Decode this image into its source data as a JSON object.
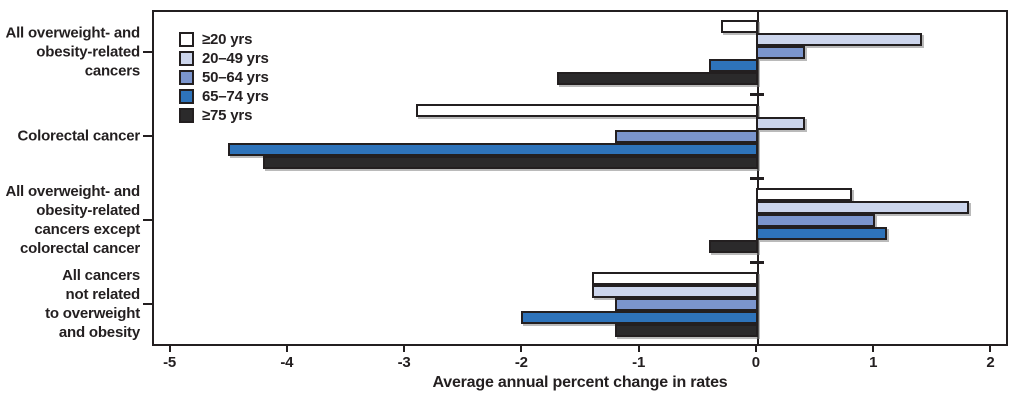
{
  "figure": {
    "background": "#ffffff",
    "text_color": "#231f20",
    "border_color": "#231f20",
    "bar_shadow_color": "#828282"
  },
  "chart_data": {
    "type": "bar",
    "orientation": "horizontal",
    "title": "",
    "xlabel": "Average annual percent change in rates",
    "ylabel": "",
    "xlim": [
      -5.15,
      2.15
    ],
    "x_ticks": [
      -5,
      -4,
      -3,
      -2,
      -1,
      0,
      1,
      2
    ],
    "grid": false,
    "legend_position": "top-left-inside",
    "categories": [
      "All overweight- and\nobesity-related\ncancers",
      "Colorectal cancer",
      "All overweight- and\nobesity-related\ncancers except\ncolorectal cancer",
      "All cancers\nnot related\nto overweight\nand obesity"
    ],
    "series": [
      {
        "name": "≥20 yrs",
        "color": "#ffffff",
        "values": [
          -0.3,
          -2.9,
          0.8,
          -1.4
        ]
      },
      {
        "name": "20–49 yrs",
        "color": "#ccd5ec",
        "values": [
          1.4,
          0.4,
          1.8,
          -1.4
        ]
      },
      {
        "name": "50–64 yrs",
        "color": "#7b95cd",
        "values": [
          0.4,
          -1.2,
          1.0,
          -1.2
        ]
      },
      {
        "name": "65–74 yrs",
        "color": "#2e73ba",
        "values": [
          -0.4,
          -4.5,
          1.1,
          -2.0
        ]
      },
      {
        "name": "≥75 yrs",
        "color": "#2b2a2b",
        "values": [
          -1.7,
          -4.2,
          -0.4,
          -1.2
        ]
      }
    ]
  }
}
